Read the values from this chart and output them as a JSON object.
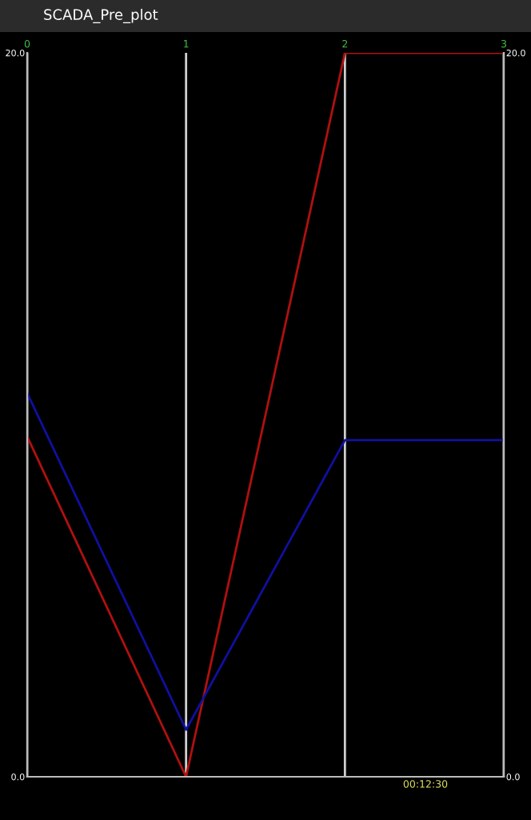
{
  "chart_data": {
    "type": "line",
    "title": "SCADA_Pre_plot",
    "x": [
      0,
      1,
      2,
      3
    ],
    "series": [
      {
        "color": "#b01010",
        "values": [
          9.4,
          0,
          20,
          20
        ]
      },
      {
        "color": "#1010a0",
        "values": [
          10.6,
          1.3,
          9.3,
          9.3
        ]
      }
    ],
    "xlim": [
      0,
      3
    ],
    "xticks": [
      0,
      1,
      2,
      3
    ],
    "ylim": [
      0,
      20
    ],
    "yticks": [
      {
        "value": 0,
        "label": "0.0"
      },
      {
        "value": 20,
        "label": "20.0"
      }
    ],
    "y2lim": [
      0,
      20
    ],
    "y2ticks": [
      {
        "value": 0,
        "label": "0.0"
      },
      {
        "value": 20,
        "label": "20.0"
      }
    ],
    "grid": "x",
    "legend": false,
    "marker": "none",
    "line_style": "solid",
    "annotations": [
      "00:12:30"
    ]
  }
}
